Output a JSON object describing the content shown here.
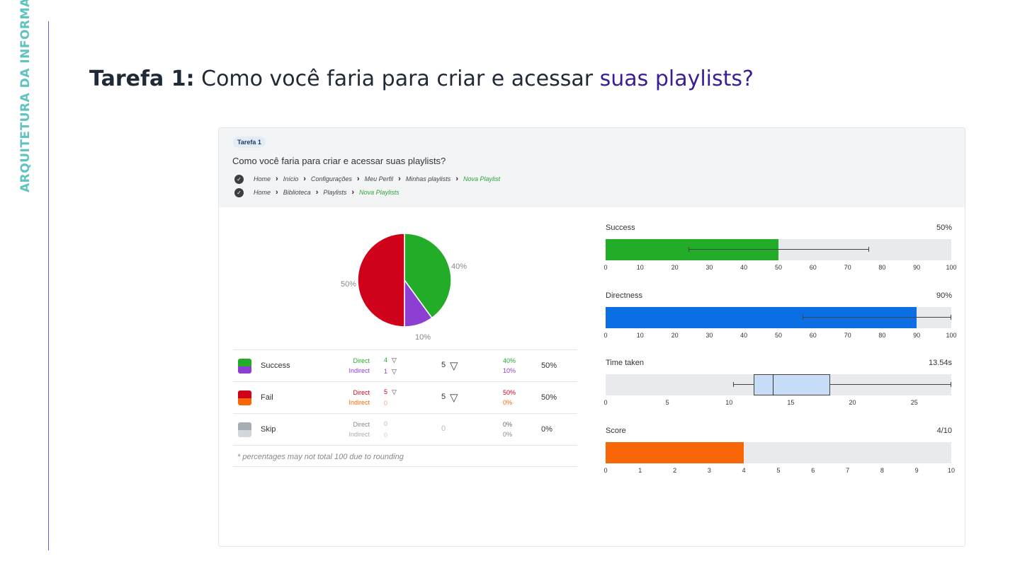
{
  "sidebar": {
    "label": "ARQUITETURA DA INFORMAÇÃO"
  },
  "title": {
    "bold": "Tarefa 1:",
    "normal": " Como você faria para criar e acessar ",
    "highlight": "suas playlists?"
  },
  "colors": {
    "success": "#22ac28",
    "indirect_success": "#8c3fd0",
    "fail": "#d0021b",
    "indirect_fail": "#f76707",
    "skip": "#a7adb4",
    "directness": "#0b6fe3",
    "score": "#f76707",
    "box": "#c6dcf7"
  },
  "task": {
    "badge": "Tarefa 1",
    "question": "Como você faria para criar e acessar suas playlists?",
    "paths": [
      [
        "Home",
        "Início",
        "Configurações",
        "Meu Perfil",
        "Minhas playlists",
        "Nova Playlist"
      ],
      [
        "Home",
        "Biblioteca",
        "Playlists",
        "Nova Playlists"
      ]
    ]
  },
  "pie": {
    "labels": {
      "success": "40%",
      "indirect": "10%",
      "fail": "50%"
    }
  },
  "chart_data": [
    {
      "type": "pie",
      "categories": [
        "Direct success",
        "Indirect success",
        "Fail"
      ],
      "values": [
        40,
        10,
        50
      ]
    },
    {
      "type": "bar",
      "title": "Success",
      "value": 50,
      "value_label": "50%",
      "error_range": [
        24,
        76
      ],
      "xlim": [
        0,
        100
      ],
      "ticks": [
        "0",
        "10",
        "20",
        "30",
        "40",
        "50",
        "60",
        "70",
        "80",
        "90",
        "100"
      ]
    },
    {
      "type": "bar",
      "title": "Directness",
      "value": 90,
      "value_label": "90%",
      "error_range": [
        57,
        100
      ],
      "xlim": [
        0,
        100
      ],
      "ticks": [
        "0",
        "10",
        "20",
        "30",
        "40",
        "50",
        "60",
        "70",
        "80",
        "90",
        "100"
      ]
    },
    {
      "type": "box",
      "title": "Time taken",
      "value_label": "13.54s",
      "min": 10.3,
      "q1": 12,
      "median": 13.54,
      "q3": 18.2,
      "max": 28,
      "xlim": [
        0,
        28
      ],
      "tick_values": [
        0,
        5,
        10,
        15,
        20,
        25
      ],
      "ticks": [
        "0",
        "5",
        "10",
        "15",
        "20",
        "25"
      ]
    },
    {
      "type": "bar",
      "title": "Score",
      "value": 4,
      "value_label": "4/10",
      "xlim": [
        0,
        10
      ],
      "ticks": [
        "0",
        "1",
        "2",
        "3",
        "4",
        "5",
        "6",
        "7",
        "8",
        "9",
        "10"
      ]
    }
  ],
  "results": {
    "rows": [
      {
        "name": "Success",
        "direct_label": "Direct",
        "indirect_label": "Indirect",
        "direct_count": "4",
        "indirect_count": "1",
        "total": "5",
        "direct_pct": "40%",
        "indirect_pct": "10%",
        "total_pct": "50%"
      },
      {
        "name": "Fail",
        "direct_label": "Direct",
        "indirect_label": "Indirect",
        "direct_count": "5",
        "indirect_count": "0",
        "total": "5",
        "direct_pct": "50%",
        "indirect_pct": "0%",
        "total_pct": "50%"
      },
      {
        "name": "Skip",
        "direct_label": "Direct",
        "indirect_label": "Indirect",
        "direct_count": "0",
        "indirect_count": "0",
        "total": "0",
        "direct_pct": "0%",
        "indirect_pct": "0%",
        "total_pct": "0%"
      }
    ],
    "footnote": "* percentages may not total 100 due to rounding"
  }
}
